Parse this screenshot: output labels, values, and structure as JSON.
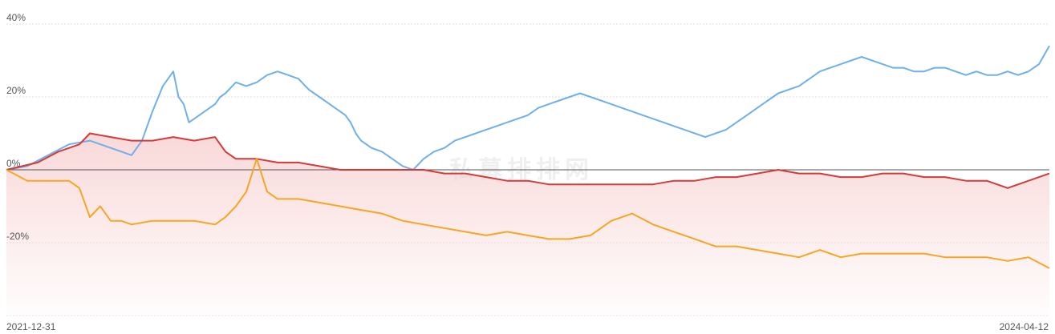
{
  "chart_data": {
    "type": "line",
    "title": "",
    "xlabel": "",
    "ylabel": "",
    "x_range": [
      "2021-12-31",
      "2024-04-12"
    ],
    "x_tick_labels": [
      "2021-12-31",
      "2024-04-12"
    ],
    "y_tick_labels": [
      "40%",
      "20%",
      "0%",
      "-20%"
    ],
    "y_ticks": [
      40,
      20,
      0,
      -20
    ],
    "ylim": [
      -40,
      42
    ],
    "grid": true,
    "legend": "none",
    "watermark": "私募排排网",
    "zero_line_color": "#555555",
    "area_fill_color": "#f8d4d4",
    "series": [
      {
        "color": "#6fb0ea",
        "values": [
          [
            0,
            0
          ],
          [
            2,
            1
          ],
          [
            4,
            4
          ],
          [
            6,
            7
          ],
          [
            8,
            8
          ],
          [
            10,
            6
          ],
          [
            12,
            4
          ],
          [
            13,
            8
          ],
          [
            14,
            16
          ],
          [
            15,
            23
          ],
          [
            16,
            27
          ],
          [
            16.5,
            20
          ],
          [
            17,
            18
          ],
          [
            17.5,
            13
          ],
          [
            18,
            14
          ],
          [
            19,
            16
          ],
          [
            20,
            18
          ],
          [
            20.5,
            20
          ],
          [
            21,
            21
          ],
          [
            22,
            24
          ],
          [
            23,
            23
          ],
          [
            24,
            24
          ],
          [
            25,
            26
          ],
          [
            26,
            27
          ],
          [
            27,
            26
          ],
          [
            28,
            25
          ],
          [
            29,
            22
          ],
          [
            30,
            20
          ],
          [
            30.5,
            19
          ],
          [
            31,
            18
          ],
          [
            31.5,
            17
          ],
          [
            32,
            16
          ],
          [
            32.5,
            15
          ],
          [
            33,
            13
          ],
          [
            33.5,
            10
          ],
          [
            34,
            8
          ],
          [
            35,
            6
          ],
          [
            36,
            5
          ],
          [
            37,
            3
          ],
          [
            38,
            1
          ],
          [
            39,
            0
          ],
          [
            40,
            3
          ],
          [
            41,
            5
          ],
          [
            42,
            6
          ],
          [
            43,
            8
          ],
          [
            44,
            9
          ],
          [
            45,
            10
          ],
          [
            46,
            11
          ],
          [
            47,
            12
          ],
          [
            48,
            13
          ],
          [
            49,
            14
          ],
          [
            50,
            15
          ],
          [
            51,
            17
          ],
          [
            52,
            18
          ],
          [
            53,
            19
          ],
          [
            54,
            20
          ],
          [
            55,
            21
          ],
          [
            56,
            20
          ],
          [
            57,
            19
          ],
          [
            58,
            18
          ],
          [
            59,
            17
          ],
          [
            60,
            16
          ],
          [
            61,
            15
          ],
          [
            62,
            14
          ],
          [
            63,
            13
          ],
          [
            64,
            12
          ],
          [
            65,
            11
          ],
          [
            66,
            10
          ],
          [
            67,
            9
          ],
          [
            68,
            10
          ],
          [
            69,
            11
          ],
          [
            70,
            13
          ],
          [
            71,
            15
          ],
          [
            72,
            17
          ],
          [
            73,
            19
          ],
          [
            74,
            21
          ],
          [
            75,
            22
          ],
          [
            76,
            23
          ],
          [
            77,
            25
          ],
          [
            78,
            27
          ],
          [
            79,
            28
          ],
          [
            80,
            29
          ],
          [
            81,
            30
          ],
          [
            82,
            31
          ],
          [
            83,
            30
          ],
          [
            84,
            29
          ],
          [
            85,
            28
          ],
          [
            86,
            28
          ],
          [
            87,
            27
          ],
          [
            88,
            27
          ],
          [
            89,
            28
          ],
          [
            90,
            28
          ],
          [
            91,
            27
          ],
          [
            92,
            26
          ],
          [
            93,
            27
          ],
          [
            94,
            26
          ],
          [
            95,
            26
          ],
          [
            96,
            27
          ],
          [
            97,
            26
          ],
          [
            98,
            27
          ],
          [
            99,
            29
          ],
          [
            100,
            34
          ]
        ]
      },
      {
        "color": "#d43a3a",
        "values": [
          [
            0,
            0
          ],
          [
            3,
            2
          ],
          [
            5,
            5
          ],
          [
            7,
            7
          ],
          [
            8,
            10
          ],
          [
            10,
            9
          ],
          [
            12,
            8
          ],
          [
            14,
            8
          ],
          [
            16,
            9
          ],
          [
            18,
            8
          ],
          [
            20,
            9
          ],
          [
            21,
            5
          ],
          [
            22,
            3
          ],
          [
            24,
            3
          ],
          [
            26,
            2
          ],
          [
            28,
            2
          ],
          [
            30,
            1
          ],
          [
            32,
            0
          ],
          [
            34,
            0
          ],
          [
            36,
            0
          ],
          [
            38,
            0
          ],
          [
            40,
            0
          ],
          [
            42,
            -1
          ],
          [
            44,
            -1
          ],
          [
            46,
            -2
          ],
          [
            48,
            -3
          ],
          [
            50,
            -3
          ],
          [
            52,
            -4
          ],
          [
            54,
            -4
          ],
          [
            56,
            -4
          ],
          [
            58,
            -4
          ],
          [
            60,
            -4
          ],
          [
            62,
            -4
          ],
          [
            64,
            -3
          ],
          [
            66,
            -3
          ],
          [
            68,
            -2
          ],
          [
            70,
            -2
          ],
          [
            72,
            -1
          ],
          [
            74,
            0
          ],
          [
            76,
            -1
          ],
          [
            78,
            -1
          ],
          [
            80,
            -2
          ],
          [
            82,
            -2
          ],
          [
            84,
            -1
          ],
          [
            86,
            -1
          ],
          [
            88,
            -2
          ],
          [
            90,
            -2
          ],
          [
            92,
            -3
          ],
          [
            94,
            -3
          ],
          [
            96,
            -5
          ],
          [
            98,
            -3
          ],
          [
            100,
            -1
          ]
        ]
      },
      {
        "color": "#f5a623",
        "values": [
          [
            0,
            0
          ],
          [
            2,
            -3
          ],
          [
            4,
            -3
          ],
          [
            6,
            -3
          ],
          [
            7,
            -5
          ],
          [
            8,
            -13
          ],
          [
            9,
            -10
          ],
          [
            10,
            -14
          ],
          [
            11,
            -14
          ],
          [
            12,
            -15
          ],
          [
            14,
            -14
          ],
          [
            16,
            -14
          ],
          [
            18,
            -14
          ],
          [
            20,
            -15
          ],
          [
            21,
            -13
          ],
          [
            22,
            -10
          ],
          [
            23,
            -6
          ],
          [
            24,
            3
          ],
          [
            25,
            -6
          ],
          [
            26,
            -8
          ],
          [
            28,
            -8
          ],
          [
            30,
            -9
          ],
          [
            32,
            -10
          ],
          [
            34,
            -11
          ],
          [
            36,
            -12
          ],
          [
            38,
            -14
          ],
          [
            40,
            -15
          ],
          [
            42,
            -16
          ],
          [
            44,
            -17
          ],
          [
            46,
            -18
          ],
          [
            48,
            -17
          ],
          [
            50,
            -18
          ],
          [
            52,
            -19
          ],
          [
            54,
            -19
          ],
          [
            56,
            -18
          ],
          [
            58,
            -14
          ],
          [
            60,
            -12
          ],
          [
            62,
            -15
          ],
          [
            64,
            -17
          ],
          [
            66,
            -19
          ],
          [
            68,
            -21
          ],
          [
            70,
            -21
          ],
          [
            72,
            -22
          ],
          [
            74,
            -23
          ],
          [
            76,
            -24
          ],
          [
            78,
            -22
          ],
          [
            80,
            -24
          ],
          [
            82,
            -23
          ],
          [
            84,
            -23
          ],
          [
            86,
            -23
          ],
          [
            88,
            -23
          ],
          [
            90,
            -24
          ],
          [
            92,
            -24
          ],
          [
            94,
            -24
          ],
          [
            96,
            -25
          ],
          [
            98,
            -24
          ],
          [
            100,
            -27
          ]
        ]
      }
    ]
  }
}
